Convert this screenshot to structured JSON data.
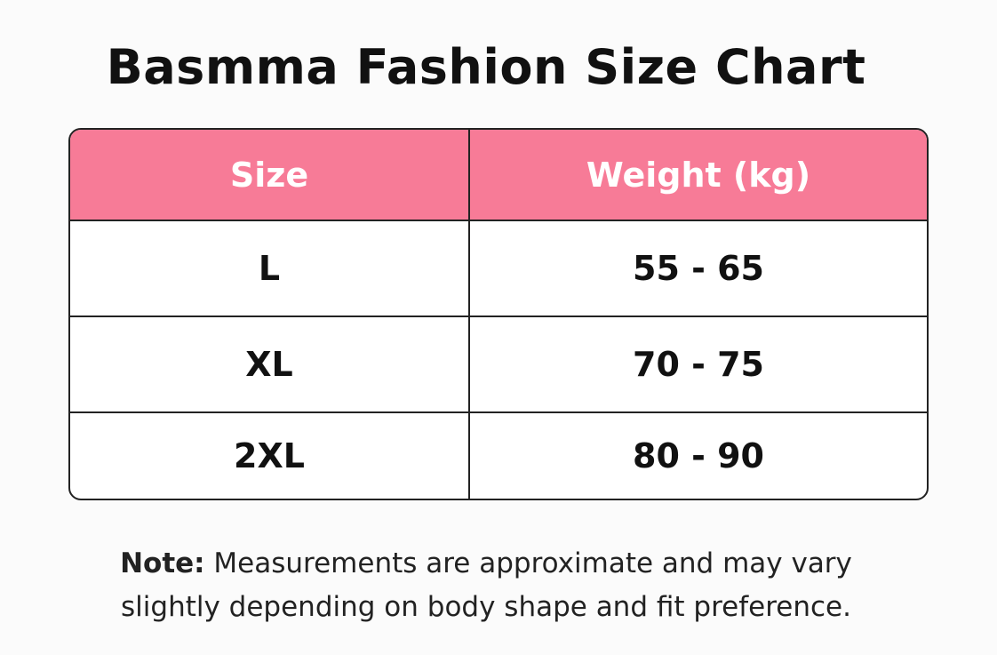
{
  "header": {
    "title": "Basmma Fashion Size Chart"
  },
  "table": {
    "columns": [
      "Size",
      "Weight (kg)"
    ],
    "rows": [
      [
        "L",
        "55 - 65"
      ],
      [
        "XL",
        "70 - 75"
      ],
      [
        "2XL",
        "80 - 90"
      ]
    ]
  },
  "note": {
    "label": "Note:",
    "text": "Measurements are approximate and may vary slightly depending on body shape and fit preference."
  }
}
